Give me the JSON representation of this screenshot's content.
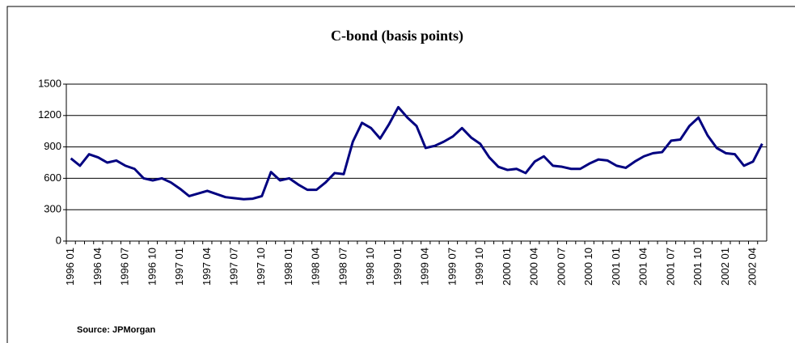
{
  "chart_data": {
    "type": "line",
    "title": "C-bond (basis points)",
    "source": "Source: JPMorgan",
    "categories": [
      "1996 01",
      null,
      null,
      "1996 04",
      null,
      null,
      "1996 07",
      null,
      null,
      "1996 10",
      null,
      null,
      "1997 01",
      null,
      null,
      "1997 04",
      null,
      null,
      "1997 07",
      null,
      null,
      "1997 10",
      null,
      null,
      "1998 01",
      null,
      null,
      "1998 04",
      null,
      null,
      "1998 07",
      null,
      null,
      "1998 10",
      null,
      null,
      "1999 01",
      null,
      null,
      "1999 04",
      null,
      null,
      "1999 07",
      null,
      null,
      "1999 10",
      null,
      null,
      "2000 01",
      null,
      null,
      "2000 04",
      null,
      null,
      "2000 07",
      null,
      null,
      "2000 10",
      null,
      null,
      "2001 01",
      null,
      null,
      "2001 04",
      null,
      null,
      "2001 07",
      null,
      null,
      "2001 10",
      null,
      null,
      "2002 01",
      null,
      null,
      "2002 04",
      null
    ],
    "series": [
      {
        "name": "C-bond",
        "color": "#000080",
        "values": [
          790,
          720,
          830,
          800,
          750,
          770,
          720,
          690,
          600,
          580,
          600,
          560,
          500,
          430,
          455,
          480,
          450,
          420,
          410,
          400,
          405,
          430,
          660,
          580,
          600,
          540,
          490,
          490,
          560,
          650,
          640,
          950,
          1130,
          1080,
          980,
          1120,
          1280,
          1180,
          1100,
          890,
          910,
          950,
          1000,
          1080,
          990,
          930,
          800,
          710,
          680,
          690,
          650,
          760,
          810,
          720,
          710,
          690,
          690,
          740,
          780,
          770,
          720,
          700,
          760,
          810,
          840,
          850,
          960,
          970,
          1100,
          1180,
          1010,
          890,
          840,
          830,
          720,
          760,
          930
        ]
      }
    ],
    "ylim": [
      0,
      1500
    ],
    "yticks": [
      0,
      300,
      600,
      900,
      1200,
      1500
    ],
    "grid": true
  }
}
